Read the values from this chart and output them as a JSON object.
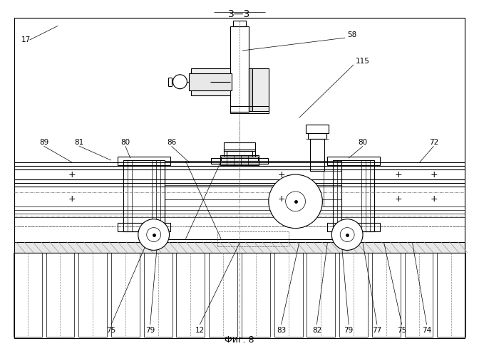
{
  "title": "3—3",
  "fig_label": "Фиг. 8",
  "bg_color": "#ffffff",
  "line_color": "#000000"
}
